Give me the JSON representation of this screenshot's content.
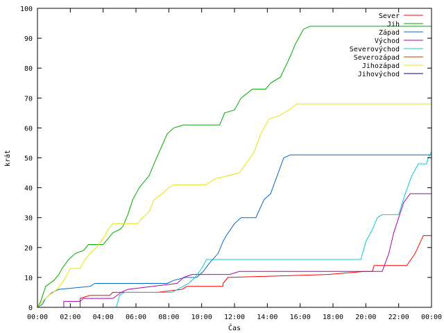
{
  "chart_data": {
    "type": "line",
    "xlabel": "Čas",
    "ylabel": "krát",
    "ylim": [
      0,
      100
    ],
    "xlim": [
      0,
      24
    ],
    "yticks": [
      0,
      10,
      20,
      30,
      40,
      50,
      60,
      70,
      80,
      90,
      100
    ],
    "xticks": [
      {
        "h": 0,
        "label": "00:00"
      },
      {
        "h": 2,
        "label": "02:00"
      },
      {
        "h": 4,
        "label": "04:00"
      },
      {
        "h": 6,
        "label": "06:00"
      },
      {
        "h": 8,
        "label": "08:00"
      },
      {
        "h": 10,
        "label": "10:00"
      },
      {
        "h": 12,
        "label": "12:00"
      },
      {
        "h": 14,
        "label": "14:00"
      },
      {
        "h": 16,
        "label": "16:00"
      },
      {
        "h": 18,
        "label": "18:00"
      },
      {
        "h": 20,
        "label": "20:00"
      },
      {
        "h": 22,
        "label": "22:00"
      },
      {
        "h": 24,
        "label": "00:00"
      }
    ],
    "grid": false,
    "legend_position": "top-right",
    "series": [
      {
        "name": "Sever",
        "color": "#ff0000",
        "points": [
          [
            0,
            0
          ],
          [
            2.6,
            0
          ],
          [
            2.6,
            3
          ],
          [
            3.2,
            4
          ],
          [
            4.4,
            4
          ],
          [
            4.6,
            5
          ],
          [
            7.3,
            5
          ],
          [
            8.8,
            6
          ],
          [
            9.1,
            7
          ],
          [
            11.3,
            7
          ],
          [
            11.3,
            8
          ],
          [
            11.6,
            10
          ],
          [
            17.7,
            11
          ],
          [
            19.9,
            12
          ],
          [
            20.4,
            12
          ],
          [
            20.5,
            14
          ],
          [
            22.5,
            14
          ],
          [
            23.0,
            18
          ],
          [
            23.5,
            24
          ],
          [
            23.8,
            24
          ],
          [
            24,
            24
          ]
        ]
      },
      {
        "name": "Jih",
        "color": "#00aa00",
        "points": [
          [
            0,
            0
          ],
          [
            0.2,
            2
          ],
          [
            0.5,
            7
          ],
          [
            1.0,
            9
          ],
          [
            1.3,
            11
          ],
          [
            1.5,
            13
          ],
          [
            1.9,
            16
          ],
          [
            2.3,
            18
          ],
          [
            2.8,
            19
          ],
          [
            3.1,
            21
          ],
          [
            3.6,
            21
          ],
          [
            4.0,
            21
          ],
          [
            4.3,
            23
          ],
          [
            4.6,
            25
          ],
          [
            5.0,
            26
          ],
          [
            5.2,
            27
          ],
          [
            5.5,
            31
          ],
          [
            5.8,
            36
          ],
          [
            6.2,
            40
          ],
          [
            6.8,
            44
          ],
          [
            7.1,
            48
          ],
          [
            7.5,
            53
          ],
          [
            7.9,
            58
          ],
          [
            8.3,
            60
          ],
          [
            8.9,
            61
          ],
          [
            11.1,
            61
          ],
          [
            11.4,
            65
          ],
          [
            12.0,
            66
          ],
          [
            12.4,
            70
          ],
          [
            13.1,
            73
          ],
          [
            13.9,
            73
          ],
          [
            14.2,
            75
          ],
          [
            14.8,
            77
          ],
          [
            15.4,
            84
          ],
          [
            15.7,
            88
          ],
          [
            16.2,
            93
          ],
          [
            16.6,
            94
          ],
          [
            24,
            94
          ]
        ]
      },
      {
        "name": "Západ",
        "color": "#0066cc",
        "points": [
          [
            0,
            0
          ],
          [
            0.3,
            1
          ],
          [
            0.5,
            3
          ],
          [
            0.9,
            5
          ],
          [
            1.3,
            6
          ],
          [
            3.2,
            7
          ],
          [
            3.5,
            8
          ],
          [
            7.9,
            8
          ],
          [
            8.3,
            9
          ],
          [
            9.0,
            10
          ],
          [
            9.7,
            10
          ],
          [
            10.1,
            12
          ],
          [
            10.5,
            15
          ],
          [
            11.0,
            18
          ],
          [
            11.3,
            22
          ],
          [
            11.5,
            24
          ],
          [
            12.0,
            28
          ],
          [
            12.4,
            30
          ],
          [
            13.3,
            30
          ],
          [
            13.8,
            36
          ],
          [
            14.2,
            38
          ],
          [
            14.6,
            44
          ],
          [
            15.0,
            50
          ],
          [
            15.4,
            51
          ],
          [
            24,
            51
          ]
        ]
      },
      {
        "name": "Východ",
        "color": "#aa00aa",
        "points": [
          [
            0,
            0
          ],
          [
            1.6,
            0
          ],
          [
            1.6,
            2
          ],
          [
            2.6,
            2
          ],
          [
            2.8,
            3
          ],
          [
            4.6,
            3
          ],
          [
            5.1,
            5
          ],
          [
            5.5,
            6
          ],
          [
            8.5,
            8
          ],
          [
            8.9,
            10
          ],
          [
            9.4,
            11
          ],
          [
            11.7,
            11
          ],
          [
            12.3,
            12
          ],
          [
            21.0,
            12
          ],
          [
            21.4,
            18
          ],
          [
            21.7,
            25
          ],
          [
            22.0,
            30
          ],
          [
            22.3,
            35
          ],
          [
            22.7,
            38
          ],
          [
            24,
            38
          ]
        ]
      },
      {
        "name": "Severovýchod",
        "color": "#00cccc",
        "points": [
          [
            0,
            0
          ],
          [
            4.8,
            0
          ],
          [
            5.0,
            4
          ],
          [
            5.3,
            5
          ],
          [
            8.2,
            5
          ],
          [
            9.2,
            8
          ],
          [
            9.6,
            10
          ],
          [
            10.0,
            13
          ],
          [
            10.3,
            16
          ],
          [
            19.7,
            16
          ],
          [
            20.0,
            22
          ],
          [
            20.4,
            26
          ],
          [
            20.7,
            30
          ],
          [
            21.0,
            31
          ],
          [
            22.0,
            31
          ],
          [
            22.4,
            38
          ],
          [
            22.8,
            44
          ],
          [
            23.2,
            48
          ],
          [
            23.7,
            48
          ],
          [
            23.8,
            50
          ],
          [
            24,
            52
          ]
        ]
      },
      {
        "name": "Severozápad",
        "color": "#cc3300",
        "points": [
          [
            0,
            0
          ],
          [
            24,
            0
          ]
        ]
      },
      {
        "name": "Jihozápad",
        "color": "#e6e600",
        "points": [
          [
            0,
            0
          ],
          [
            0.3,
            2
          ],
          [
            0.7,
            4
          ],
          [
            1.2,
            6
          ],
          [
            1.6,
            9
          ],
          [
            2.0,
            13
          ],
          [
            2.6,
            13
          ],
          [
            2.9,
            16
          ],
          [
            3.2,
            18
          ],
          [
            3.6,
            20
          ],
          [
            4.0,
            23
          ],
          [
            4.3,
            26
          ],
          [
            4.6,
            28
          ],
          [
            5.3,
            28
          ],
          [
            6.1,
            28
          ],
          [
            6.4,
            30
          ],
          [
            6.8,
            32
          ],
          [
            7.1,
            36
          ],
          [
            7.6,
            38
          ],
          [
            8.0,
            40
          ],
          [
            8.3,
            41
          ],
          [
            10.3,
            41
          ],
          [
            10.8,
            43
          ],
          [
            11.6,
            44
          ],
          [
            12.3,
            45
          ],
          [
            12.7,
            48
          ],
          [
            13.2,
            52
          ],
          [
            13.6,
            58
          ],
          [
            14.1,
            63
          ],
          [
            14.7,
            64
          ],
          [
            15.3,
            66
          ],
          [
            15.8,
            68
          ],
          [
            24,
            68
          ]
        ]
      },
      {
        "name": "Jihovýchod",
        "color": "#000099",
        "points": [
          [
            0,
            0
          ],
          [
            24,
            0
          ]
        ]
      }
    ]
  }
}
